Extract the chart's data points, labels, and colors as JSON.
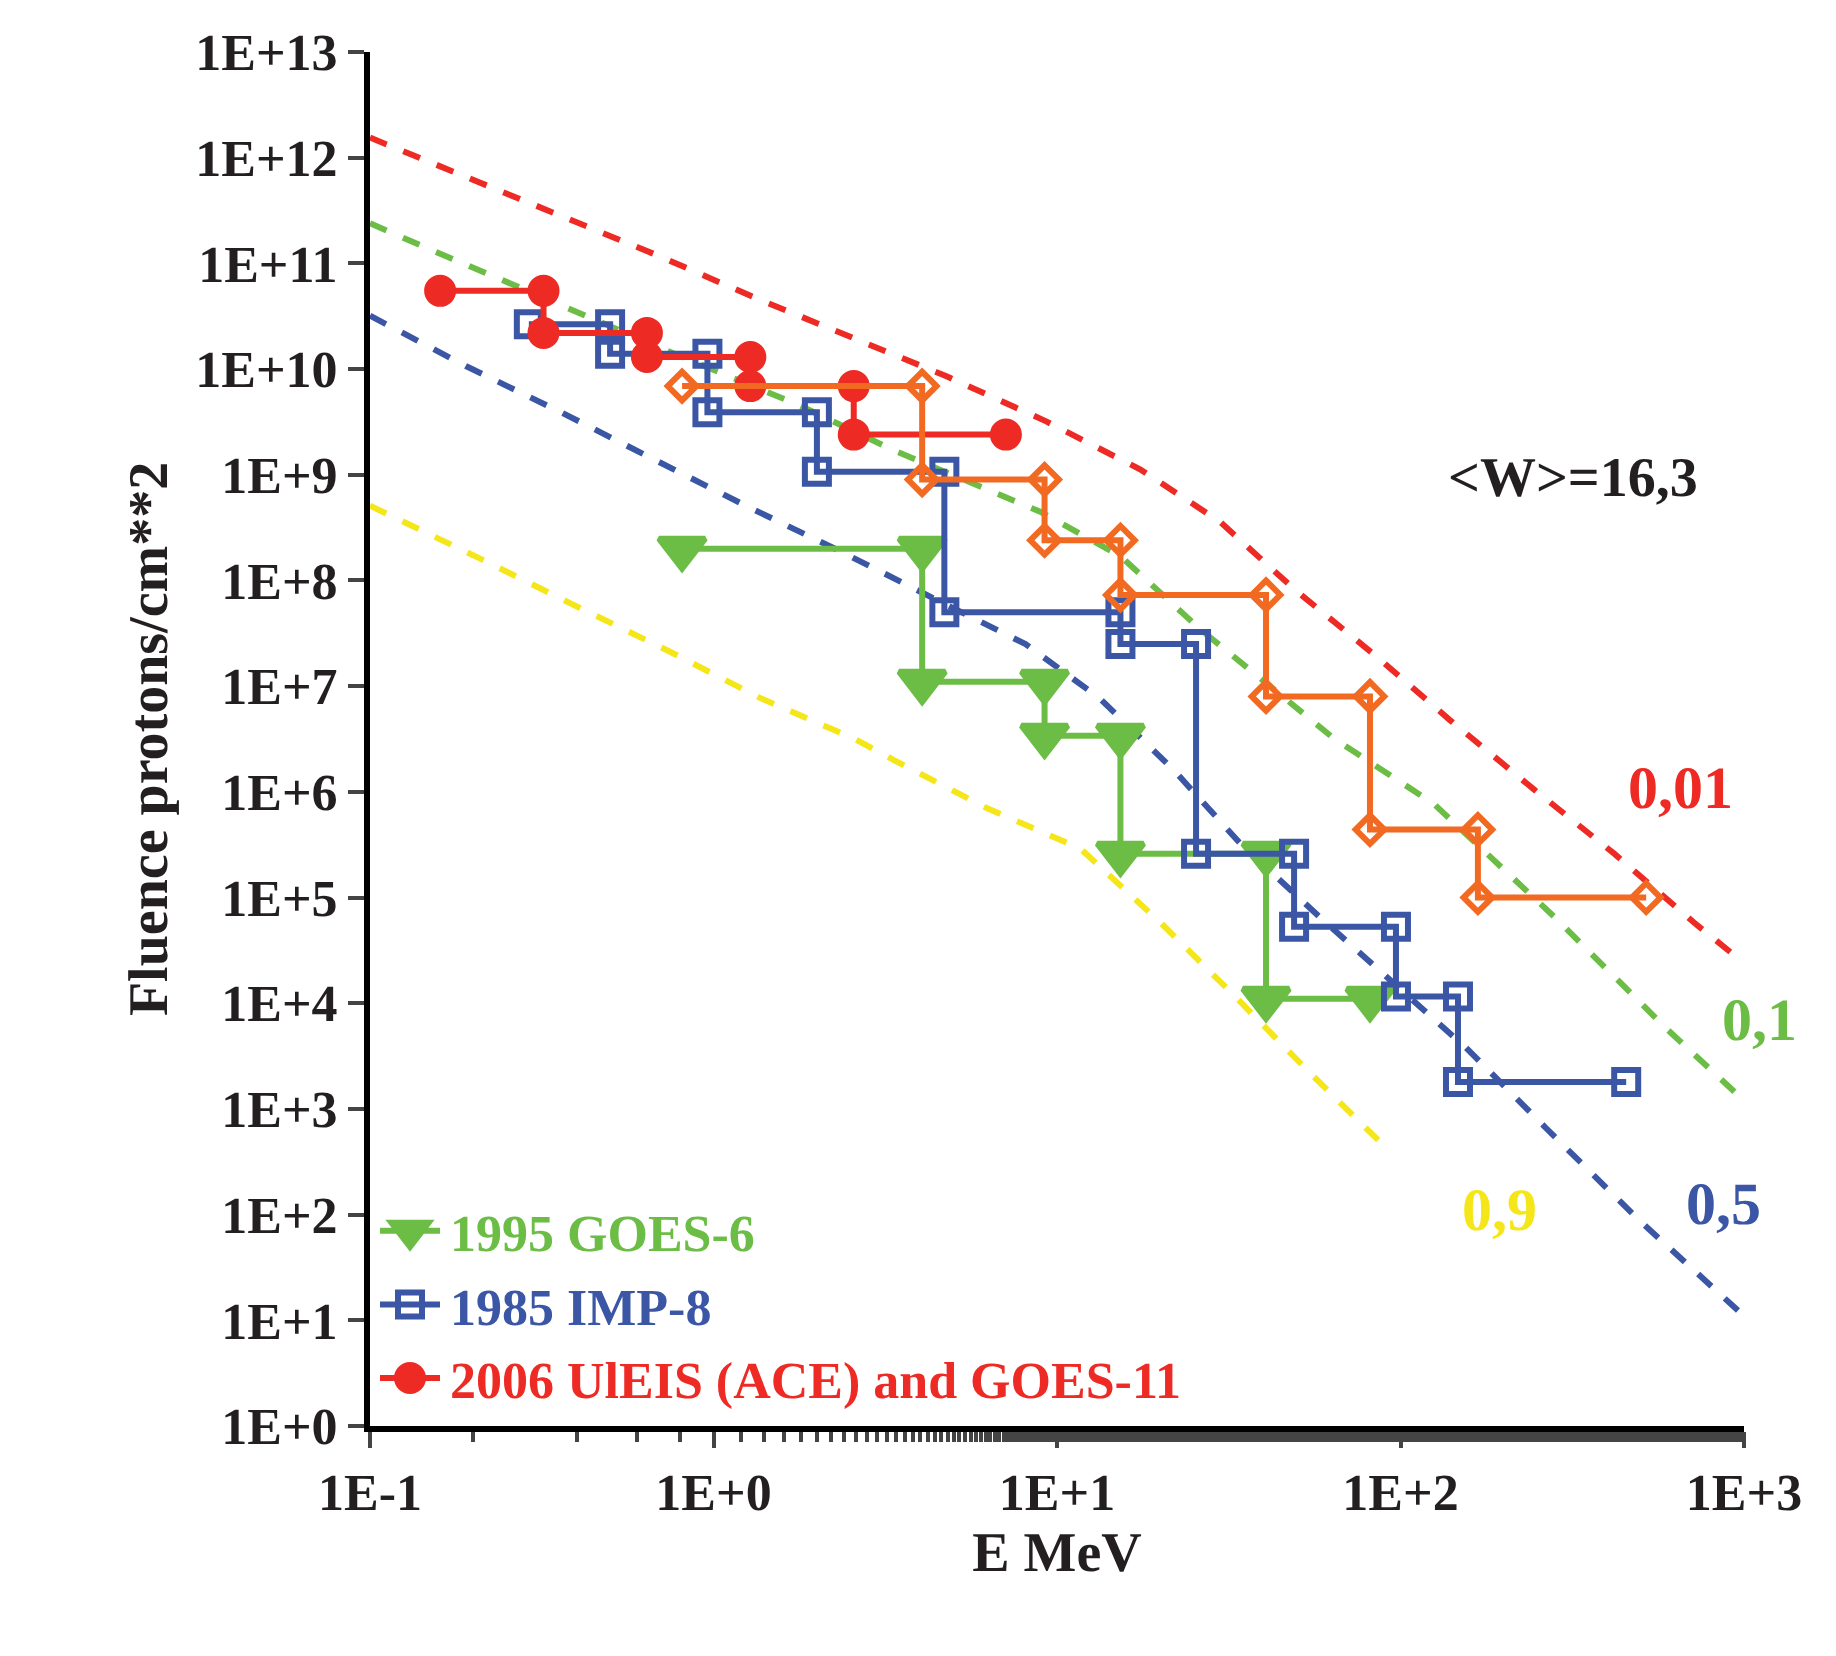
{
  "chart_data": {
    "type": "line",
    "xlabel": "E MeV",
    "ylabel": "Fluence protons/cm**2",
    "log": "xy",
    "legend": "bottom left",
    "xlim": [
      0.1,
      1000
    ],
    "xticks": [
      {
        "value": 0.1,
        "label": "1E-1"
      },
      {
        "value": 1,
        "label": "1E+0"
      },
      {
        "value": 10,
        "label": "1E+1"
      },
      {
        "value": 100,
        "label": "1E+2"
      },
      {
        "value": 1000,
        "label": "1E+3"
      }
    ],
    "ylim": [
      1,
      10000000000000.0
    ],
    "yticks": [
      {
        "value": 1,
        "label": "1E+0"
      },
      {
        "value": 10,
        "label": "1E+1"
      },
      {
        "value": 100,
        "label": "1E+2"
      },
      {
        "value": 1000,
        "label": "1E+3"
      },
      {
        "value": 10000,
        "label": "1E+4"
      },
      {
        "value": 100000,
        "label": "1E+5"
      },
      {
        "value": 1000000,
        "label": "1E+6"
      },
      {
        "value": 10000000,
        "label": "1E+7"
      },
      {
        "value": 100000000,
        "label": "1E+8"
      },
      {
        "value": 1000000000,
        "label": "1E+9"
      },
      {
        "value": 10000000000,
        "label": "1E+10"
      },
      {
        "value": 100000000000,
        "label": "1E+11"
      },
      {
        "value": 1000000000000,
        "label": "1E+12"
      },
      {
        "value": 10000000000000,
        "label": "1E+13"
      }
    ],
    "annotations": [
      "<W>=16,3"
    ],
    "series": [
      {
        "name": "0,01",
        "color": "#ee2a24",
        "marker": "none",
        "line_style": "dashed",
        "x": [
          0.1,
          0.7,
          1.37,
          4.75,
          9.3,
          17.5,
          29.8,
          49,
          87,
          139,
          245,
          419,
          715,
          1000
        ],
        "values": [
          1550000000000.0,
          116000000000.0,
          45000000000.0,
          8600000000.0,
          3200000000.0,
          1120000000.0,
          360000000.0,
          83000000.0,
          18000000.0,
          4800000.0,
          1050000.0,
          260000.0,
          58000.0,
          24000.0
        ]
      },
      {
        "name": "0,1",
        "color": "#6cbd45",
        "marker": "none",
        "line_style": "dashed",
        "x": [
          0.1,
          0.146,
          0.27,
          0.73,
          1.79,
          3.35,
          8.9,
          15.3,
          26,
          64,
          125,
          280,
          593,
          1000
        ],
        "values": [
          240000000000.0,
          140000000000.0,
          60000000000.0,
          15000000000.0,
          4500000000.0,
          1700000000.0,
          450000000.0,
          170000000.0,
          35000000.0,
          3200000.0,
          770000.0,
          66000.0,
          5800.0,
          1200.0
        ]
      },
      {
        "name": "0,5",
        "color": "#3a56a5",
        "marker": "none",
        "line_style": "dashed",
        "x": [
          0.1,
          0.19,
          0.36,
          0.67,
          1.24,
          2.33,
          4.4,
          8.1,
          13.3,
          21.9,
          34,
          58,
          155,
          265,
          498,
          1000
        ],
        "values": [
          32000000000.0,
          10700000000.0,
          3900000000.0,
          1400000000.0,
          510000000.0,
          190000000.0,
          67000000.0,
          25000000.0,
          7700000.0,
          1600000.0,
          330000.0,
          66000.0,
          3800.0,
          660,
          87,
          11
        ]
      },
      {
        "name": "0,9",
        "color": "#f5e61a",
        "marker": "none",
        "line_style": "dashed",
        "x": [
          0.1,
          0.21,
          0.39,
          0.73,
          1.37,
          2.56,
          3.35,
          6.2,
          11.7,
          20,
          33,
          53,
          87
        ],
        "values": [
          510000000.0,
          160000000.0,
          59000000.0,
          22000000.0,
          7700000.0,
          3200000.0,
          2000000.0,
          710000.0,
          290000.0,
          58000.0,
          11600.0,
          2400.0,
          490
        ]
      },
      {
        "name": "1995 GOES-6",
        "color": "#6cbd45",
        "marker": "triangle",
        "line_style": "solid",
        "x": [
          0.81,
          4.05,
          4.05,
          9.2,
          9.2,
          15.3,
          15.3,
          40.6,
          40.6,
          81.5
        ],
        "values": [
          200000000.0,
          200000000.0,
          11000000.0,
          11000000.0,
          3400000.0,
          3400000.0,
          260000.0,
          260000.0,
          11000.0,
          11000.0
        ]
      },
      {
        "name": "1985 IMP-8",
        "color": "#3a56a5",
        "marker": "square",
        "line_style": "solid",
        "x": [
          0.29,
          0.5,
          0.5,
          0.96,
          0.96,
          2.0,
          2.0,
          4.7,
          4.7,
          15.3,
          15.3,
          25.4,
          25.4,
          49,
          49,
          97,
          97,
          147,
          147,
          454
        ],
        "values": [
          26500000000.0,
          26500000000.0,
          14000000000.0,
          14000000000.0,
          3900000000.0,
          3900000000.0,
          1070000000.0,
          1070000000.0,
          50000000.0,
          50000000.0,
          25000000.0,
          25000000.0,
          260000.0,
          260000.0,
          53000.0,
          53000.0,
          11600.0,
          11600.0,
          1800.0,
          1800.0
        ]
      },
      {
        "name": "2006 UlEIS (ACE) and GOES-11",
        "color": "#ee2a24",
        "marker": "circle",
        "line_style": "solid",
        "x": [
          0.16,
          0.32,
          0.32,
          0.64,
          0.64,
          1.28,
          1.28,
          2.56,
          2.56,
          7.1
        ],
        "values": [
          55000000000.0,
          55000000000.0,
          22000000000.0,
          22000000000.0,
          13000000000.0,
          13000000000.0,
          6900000000.0,
          6900000000.0,
          2400000000.0,
          2400000000.0
        ]
      },
      {
        "color": "#f26a22",
        "marker": "diamond",
        "line_style": "solid",
        "x": [
          0.81,
          4.05,
          4.05,
          9.2,
          9.2,
          15.3,
          15.3,
          40.6,
          40.6,
          81.5,
          81.5,
          168,
          168,
          519
        ],
        "values": [
          6900000000.0,
          6900000000.0,
          900000000.0,
          900000000.0,
          240000000.0,
          240000000.0,
          73000000.0,
          73000000.0,
          8000000.0,
          8000000.0,
          440000.0,
          440000.0,
          100000.0,
          100000.0
        ]
      }
    ]
  }
}
